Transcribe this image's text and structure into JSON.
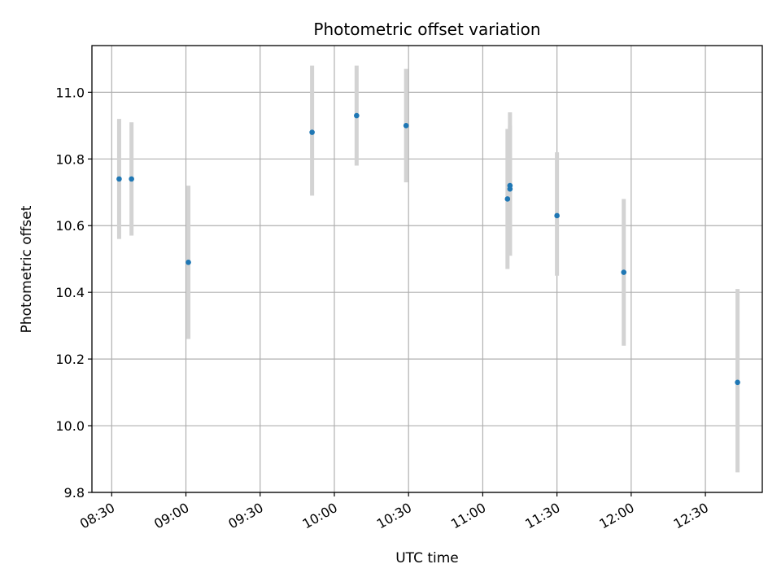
{
  "chart_data": {
    "type": "scatter",
    "title": "Photometric offset variation",
    "xlabel": "UTC time",
    "ylabel": "Photometric offset",
    "x_axis_type": "time",
    "xlim": [
      "08:22",
      "12:53"
    ],
    "ylim": [
      9.8,
      11.14
    ],
    "xticks": [
      "08:30",
      "09:00",
      "09:30",
      "10:00",
      "10:30",
      "11:00",
      "11:30",
      "12:00",
      "12:30"
    ],
    "yticks": [
      9.8,
      10.0,
      10.2,
      10.4,
      10.6,
      10.8,
      11.0
    ],
    "ytick_labels": [
      "9.8",
      "10.0",
      "10.2",
      "10.4",
      "10.6",
      "10.8",
      "11.0"
    ],
    "grid": true,
    "colors": {
      "point": "#1f77b4",
      "error_bar": "#d3d3d3"
    },
    "points": [
      {
        "x": "08:33",
        "y": 10.74,
        "y_low": 10.56,
        "y_high": 10.92
      },
      {
        "x": "08:38",
        "y": 10.74,
        "y_low": 10.57,
        "y_high": 10.91
      },
      {
        "x": "09:01",
        "y": 10.49,
        "y_low": 10.26,
        "y_high": 10.72
      },
      {
        "x": "09:51",
        "y": 10.88,
        "y_low": 10.69,
        "y_high": 11.08
      },
      {
        "x": "10:09",
        "y": 10.93,
        "y_low": 10.78,
        "y_high": 11.08
      },
      {
        "x": "10:29",
        "y": 10.9,
        "y_low": 10.73,
        "y_high": 11.07
      },
      {
        "x": "11:10",
        "y": 10.68,
        "y_low": 10.47,
        "y_high": 10.89
      },
      {
        "x": "11:11",
        "y": 10.72,
        "y_low": 10.51,
        "y_high": 10.94
      },
      {
        "x": "11:11",
        "y": 10.71,
        "y_low": 10.51,
        "y_high": 10.9
      },
      {
        "x": "11:30",
        "y": 10.63,
        "y_low": 10.45,
        "y_high": 10.82
      },
      {
        "x": "11:57",
        "y": 10.46,
        "y_low": 10.24,
        "y_high": 10.68
      },
      {
        "x": "12:43",
        "y": 10.13,
        "y_low": 9.86,
        "y_high": 10.41
      }
    ]
  }
}
